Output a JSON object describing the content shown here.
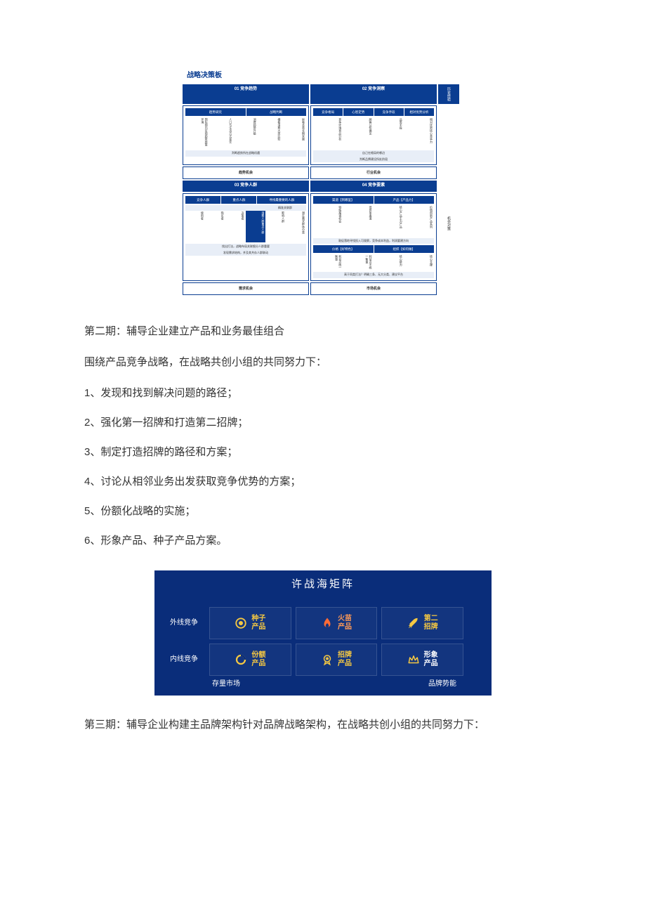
{
  "diagram1": {
    "title": "战略决策板",
    "colors": {
      "header_bg": "#0a3d91",
      "header_text": "#ffffff",
      "border": "#0a3d91",
      "sub_bg": "#e8eef7"
    },
    "top_headers": [
      "01 竞争趋势",
      "02 竞争洞察",
      "历史经验"
    ],
    "q1": {
      "subheaders": [
        "趋势研究",
        "战略判断"
      ],
      "cols": [
        "国际国内宏观趋势政策环境",
        "人口与生活方式变迁",
        "消费趋势升级",
        "横看消费大类比较",
        "纵看本类长期发展"
      ],
      "note": "判断趋势所在战略机遇"
    },
    "q2": {
      "subheaders": [
        "竞争格局",
        "心智定势",
        "竞争手段",
        "相对优势分析"
      ],
      "cols": [
        "竞争环境竞品分析",
        "顾客认知偏见",
        "品类手段",
        "相对优势核心竞争力"
      ],
      "notes": [
        "自己在格局的哪边",
        "市场集中度",
        "判断品牌建设所处阶段",
        "战略产业与支撑产业外部"
      ]
    },
    "mid_labels": [
      "趋势机会",
      "行业机会"
    ],
    "bottom_headers": [
      "03 竞争人群",
      "04 竞争要素"
    ],
    "q3": {
      "subheaders": [
        "竞争人群",
        "重点人群",
        "寻找最重要的人群"
      ],
      "sub2": "精准关联群",
      "cols": [
        "使用者",
        "购买者",
        "决策者",
        "消费人群重点人群",
        "影响人群",
        "潜在需求群体分类"
      ],
      "notes": [
        "找出打法，战略布局关联细分人群重要",
        "发现需求结构，并及其共存人群联动"
      ]
    },
    "q4": {
      "subheaders": [
        "渠道【到哪里】",
        "产品【产品力】"
      ],
      "cols": [
        "特殊渠道机会",
        "低竞争渠道",
        "核心产品主力产品",
        "价值创新产品系列"
      ],
      "notes": [
        "敦促落地寻找投入可观察，竞争成本利益，利润要建方向",
        "价格【好特色】",
        "组织【如何做】"
      ],
      "price_cols": [
        "利益点统一衡量",
        "利益点不统一衡量"
      ],
      "org_cols": [
        "核心能力",
        "核心支撑"
      ],
      "bottom_notes": [
        "政策手段/不纳",
        "组织战略协作",
        "高于同类打法？明确三条、无大分类、建议平台",
        "分步关键点的结构同规模升级建设组织口"
      ]
    },
    "footer_labels": [
      "需求机会",
      "市场机会"
    ],
    "side_label": "机会对策"
  },
  "phase2": {
    "heading": "第二期：辅导企业建立产品和业务最佳组合",
    "intro": "围绕产品竞争战略，在战略共创小组的共同努力下：",
    "items": [
      "1、发现和找到解决问题的路径；",
      "2、强化第一招牌和打造第二招牌；",
      "3、制定打造招牌的路径和方案；",
      "4、讨论从相邻业务出发获取竞争优势的方案；",
      "5、份额化战略的实施；",
      "6、形象产品、种子产品方案。"
    ]
  },
  "matrix": {
    "title": "许战海矩阵",
    "colors": {
      "bg": "#0a2d7a",
      "cell_border": "rgba(255,255,255,0.15)",
      "icon_yellow": "#f5c842",
      "icon_orange": "#ff6b35",
      "text_yellow": "#f5c842",
      "text_orange": "#ff9a56",
      "text_white": "#ffffff"
    },
    "row_labels": [
      "外线竞争",
      "内线竞争"
    ],
    "cells": [
      {
        "icon": "seed",
        "label": "种子\n产品",
        "text_color": "#f5c842"
      },
      {
        "icon": "flame",
        "label": "火苗\n产品",
        "text_color": "#ff9a56"
      },
      {
        "icon": "rocket",
        "label": "第二\n招牌",
        "text_color": "#f5c842"
      },
      {
        "icon": "ring",
        "label": "份额\n产品",
        "text_color": "#f5c842"
      },
      {
        "icon": "medal",
        "label": "招牌\n产品",
        "text_color": "#f5c842"
      },
      {
        "icon": "crown",
        "label": "形象\n产品",
        "text_color": "#ffffff"
      }
    ],
    "footer": [
      "存量市场",
      "品牌势能"
    ]
  },
  "phase3": {
    "text": "第三期：辅导企业构建主品牌架构针对品牌战略架构，在战略共创小组的共同努力下："
  }
}
